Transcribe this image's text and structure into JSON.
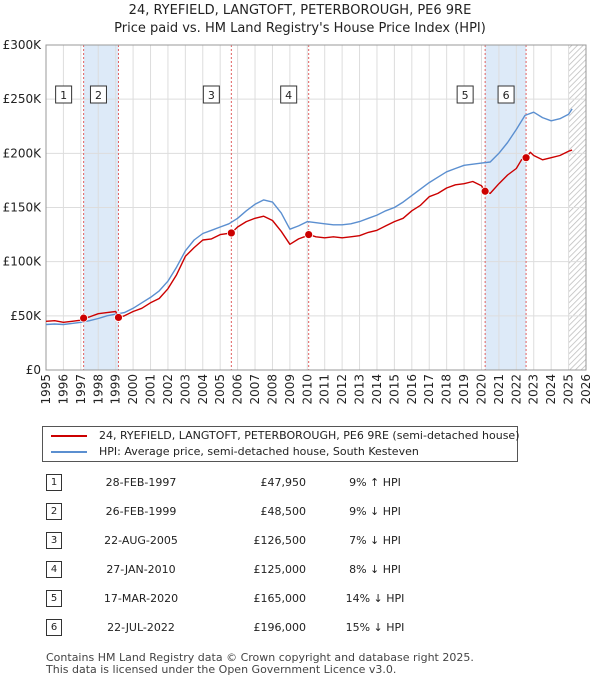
{
  "title": {
    "line1": "24, RYEFIELD, LANGTOFT, PETERBOROUGH, PE6 9RE",
    "line2": "Price paid vs. HM Land Registry's House Price Index (HPI)"
  },
  "colors": {
    "price": "#cc0000",
    "hpi": "#5b8fd0",
    "band": "#ddeaf8",
    "grid": "#dddddd",
    "marker_line": "#e06060"
  },
  "chart_data": {
    "type": "line",
    "xlim": [
      1995,
      2026
    ],
    "ylim": [
      0,
      300000
    ],
    "x_ticks": [
      1995,
      1996,
      1997,
      1998,
      1999,
      2000,
      2001,
      2002,
      2003,
      2004,
      2005,
      2006,
      2007,
      2008,
      2009,
      2010,
      2011,
      2012,
      2013,
      2014,
      2015,
      2016,
      2017,
      2018,
      2019,
      2020,
      2021,
      2022,
      2023,
      2024,
      2025,
      2026
    ],
    "y_ticks": [
      {
        "value": 0,
        "label": "£0"
      },
      {
        "value": 50000,
        "label": "£50K"
      },
      {
        "value": 100000,
        "label": "£100K"
      },
      {
        "value": 150000,
        "label": "£150K"
      },
      {
        "value": 200000,
        "label": "£200K"
      },
      {
        "value": 250000,
        "label": "£250K"
      },
      {
        "value": 300000,
        "label": "£300K"
      }
    ],
    "shaded_periods": [
      [
        1997.16,
        1999.16
      ],
      [
        2020.21,
        2022.56
      ]
    ],
    "forecast_start": 2025.0,
    "series": [
      {
        "name": "24, RYEFIELD, LANGTOFT, PETERBOROUGH, PE6 9RE (semi-detached house)",
        "key": "price",
        "x": [
          1995,
          1995.5,
          1996,
          1996.5,
          1997,
          1997.16,
          1997.5,
          1998,
          1998.5,
          1999,
          1999.16,
          1999.5,
          2000,
          2000.5,
          2001,
          2001.5,
          2002,
          2002.5,
          2003,
          2003.5,
          2004,
          2004.5,
          2005,
          2005.64,
          2006,
          2006.5,
          2007,
          2007.5,
          2008,
          2008.5,
          2009,
          2009.5,
          2010,
          2010.08,
          2010.5,
          2011,
          2011.5,
          2012,
          2012.5,
          2013,
          2013.5,
          2014,
          2014.5,
          2015,
          2015.5,
          2016,
          2016.5,
          2017,
          2017.5,
          2018,
          2018.5,
          2019,
          2019.5,
          2020,
          2020.21,
          2020.5,
          2021,
          2021.5,
          2022,
          2022.3,
          2022.56,
          2022.8,
          2023,
          2023.5,
          2024,
          2024.5,
          2025,
          2025.2
        ],
        "y": [
          45000,
          45500,
          44000,
          45000,
          46000,
          47950,
          49000,
          52000,
          53000,
          54000,
          48500,
          50000,
          54000,
          57000,
          62000,
          66000,
          75000,
          88000,
          105000,
          113000,
          120000,
          121000,
          125000,
          126500,
          132000,
          137000,
          140000,
          142000,
          138000,
          128000,
          116000,
          121000,
          124000,
          125000,
          123000,
          122000,
          123000,
          122000,
          123000,
          124000,
          127000,
          129000,
          133000,
          137000,
          140000,
          147000,
          152000,
          160000,
          163000,
          168000,
          171000,
          172000,
          174000,
          170000,
          165000,
          163000,
          172000,
          180000,
          186000,
          194000,
          196000,
          201000,
          198000,
          194000,
          196000,
          198000,
          202000,
          203000
        ]
      },
      {
        "name": "HPI: Average price, semi-detached house, South Kesteven",
        "key": "hpi",
        "x": [
          1995,
          1995.5,
          1996,
          1996.5,
          1997,
          1997.5,
          1998,
          1998.5,
          1999,
          1999.5,
          2000,
          2000.5,
          2001,
          2001.5,
          2002,
          2002.5,
          2003,
          2003.5,
          2004,
          2004.5,
          2005,
          2005.5,
          2006,
          2006.5,
          2007,
          2007.5,
          2008,
          2008.5,
          2009,
          2009.5,
          2010,
          2010.5,
          2011,
          2011.5,
          2012,
          2012.5,
          2013,
          2013.5,
          2014,
          2014.5,
          2015,
          2015.5,
          2016,
          2016.5,
          2017,
          2017.5,
          2018,
          2018.5,
          2019,
          2019.5,
          2020,
          2020.5,
          2021,
          2021.5,
          2022,
          2022.5,
          2023,
          2023.5,
          2024,
          2024.5,
          2025,
          2025.2
        ],
        "y": [
          42000,
          42500,
          42000,
          43000,
          44000,
          45500,
          47500,
          50000,
          51500,
          53000,
          57000,
          62000,
          67000,
          73000,
          82000,
          95000,
          110000,
          120000,
          126000,
          129000,
          132000,
          135000,
          140000,
          147000,
          153000,
          157000,
          155000,
          145000,
          130000,
          133000,
          137000,
          136000,
          135000,
          134000,
          134000,
          135000,
          137000,
          140000,
          143000,
          147000,
          150000,
          155000,
          161000,
          167000,
          173000,
          178000,
          183000,
          186000,
          189000,
          190000,
          191000,
          192000,
          200000,
          210000,
          222000,
          235000,
          238000,
          233000,
          230000,
          232000,
          236000,
          241000
        ]
      }
    ],
    "sales": [
      {
        "n": "1",
        "x": 1997.16,
        "y": 47950
      },
      {
        "n": "2",
        "x": 1999.16,
        "y": 48500
      },
      {
        "n": "3",
        "x": 2005.64,
        "y": 126500
      },
      {
        "n": "4",
        "x": 2010.08,
        "y": 125000
      },
      {
        "n": "5",
        "x": 2020.21,
        "y": 165000
      },
      {
        "n": "6",
        "x": 2022.56,
        "y": 196000
      }
    ]
  },
  "legend": {
    "price_label": "24, RYEFIELD, LANGTOFT, PETERBOROUGH, PE6 9RE (semi-detached house)",
    "hpi_label": "HPI: Average price, semi-detached house, South Kesteven"
  },
  "table": [
    {
      "n": "1",
      "date": "28-FEB-1997",
      "price": "£47,950",
      "hpi": "9% ↑ HPI"
    },
    {
      "n": "2",
      "date": "26-FEB-1999",
      "price": "£48,500",
      "hpi": "9% ↓ HPI"
    },
    {
      "n": "3",
      "date": "22-AUG-2005",
      "price": "£126,500",
      "hpi": "7% ↓ HPI"
    },
    {
      "n": "4",
      "date": "27-JAN-2010",
      "price": "£125,000",
      "hpi": "8% ↓ HPI"
    },
    {
      "n": "5",
      "date": "17-MAR-2020",
      "price": "£165,000",
      "hpi": "14% ↓ HPI"
    },
    {
      "n": "6",
      "date": "22-JUL-2022",
      "price": "£196,000",
      "hpi": "15% ↓ HPI"
    }
  ],
  "footer": {
    "line1": "Contains HM Land Registry data © Crown copyright and database right 2025.",
    "line2": "This data is licensed under the Open Government Licence v3.0."
  }
}
